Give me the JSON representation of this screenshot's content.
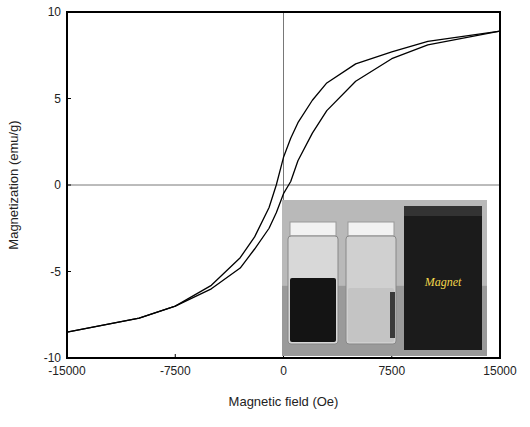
{
  "chart_data": {
    "type": "line",
    "xlabel": "Magnetic field (Oe)",
    "ylabel": "Magnetization (emu/g)",
    "annotation": "Magnet",
    "x": [
      -15000,
      -10000,
      -7500,
      -5000,
      -3000,
      -2000,
      -1000,
      -500,
      0,
      500,
      1000,
      2000,
      3000,
      5000,
      7500,
      10000,
      15000
    ],
    "series": [
      {
        "color": "#000000",
        "values": [
          -8.5,
          -7.7,
          -7.0,
          -5.8,
          -4.2,
          -3.0,
          -1.3,
          0.0,
          1.6,
          2.7,
          3.6,
          4.9,
          5.9,
          7.0,
          7.7,
          8.3,
          8.9
        ]
      },
      {
        "color": "#000000",
        "values": [
          -8.5,
          -7.7,
          -7.0,
          -6.0,
          -4.8,
          -3.7,
          -2.5,
          -1.6,
          -0.5,
          0.2,
          1.4,
          3.0,
          4.3,
          6.0,
          7.3,
          8.1,
          8.9
        ]
      }
    ],
    "xlim": [
      -15000,
      15000
    ],
    "ylim": [
      -10,
      10
    ],
    "xticks": [
      -15000,
      -7500,
      0,
      7500,
      15000
    ],
    "yticks": [
      -10,
      -5,
      0,
      5,
      10
    ],
    "grid": false
  }
}
